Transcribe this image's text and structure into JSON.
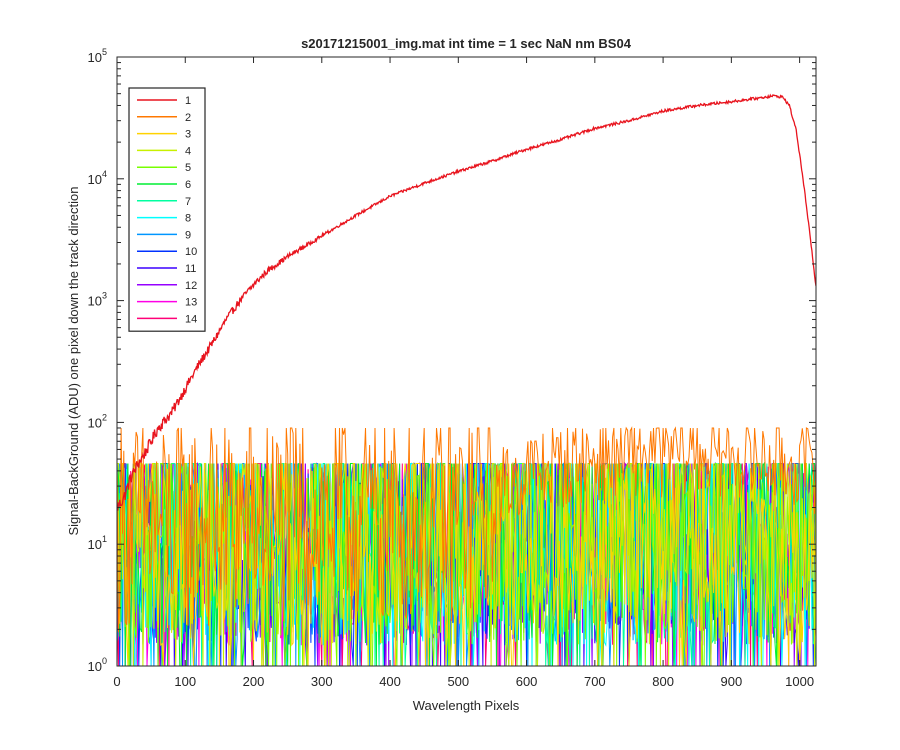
{
  "chart_data": {
    "type": "line",
    "title": "s20171215001_img.mat int time = 1 sec  NaN nm BS04",
    "xlabel": "Wavelength Pixels",
    "ylabel": "Signal-BackGround (ADU) one pixel down the track direction",
    "xlim": [
      0,
      1024
    ],
    "ylim": [
      1,
      100000
    ],
    "yscale": "log",
    "grid": false,
    "legend_position": "top-left",
    "x_ticks": [
      "0",
      "100",
      "200",
      "300",
      "400",
      "500",
      "600",
      "700",
      "800",
      "900",
      "1000"
    ],
    "y_ticks": [
      {
        "base": "10",
        "exp": "0"
      },
      {
        "base": "10",
        "exp": "1"
      },
      {
        "base": "10",
        "exp": "2"
      },
      {
        "base": "10",
        "exp": "3"
      },
      {
        "base": "10",
        "exp": "4"
      },
      {
        "base": "10",
        "exp": "5"
      }
    ],
    "series": [
      {
        "name": "1",
        "color": "#e8141e",
        "points": [
          [
            0,
            20
          ],
          [
            10,
            24
          ],
          [
            20,
            35
          ],
          [
            30,
            45
          ],
          [
            40,
            55
          ],
          [
            50,
            70
          ],
          [
            60,
            90
          ],
          [
            80,
            120
          ],
          [
            100,
            190
          ],
          [
            120,
            300
          ],
          [
            140,
            450
          ],
          [
            160,
            700
          ],
          [
            180,
            1000
          ],
          [
            200,
            1350
          ],
          [
            220,
            1750
          ],
          [
            250,
            2300
          ],
          [
            280,
            2900
          ],
          [
            300,
            3400
          ],
          [
            350,
            5000
          ],
          [
            400,
            7200
          ],
          [
            450,
            9200
          ],
          [
            500,
            11500
          ],
          [
            550,
            14000
          ],
          [
            600,
            17500
          ],
          [
            650,
            21000
          ],
          [
            700,
            26000
          ],
          [
            750,
            30000
          ],
          [
            800,
            36000
          ],
          [
            850,
            40000
          ],
          [
            900,
            43000
          ],
          [
            940,
            46000
          ],
          [
            960,
            48000
          ],
          [
            975,
            47000
          ],
          [
            985,
            40000
          ],
          [
            995,
            25000
          ],
          [
            1005,
            10000
          ],
          [
            1015,
            3500
          ],
          [
            1024,
            1300
          ]
        ]
      },
      {
        "name": "2",
        "color": "#ff7800",
        "points": [
          [
            0,
            15
          ],
          [
            100,
            15
          ],
          [
            200,
            16
          ],
          [
            300,
            17
          ],
          [
            400,
            17
          ],
          [
            500,
            18
          ],
          [
            550,
            25
          ],
          [
            600,
            40
          ],
          [
            650,
            45
          ],
          [
            700,
            50
          ],
          [
            750,
            55
          ],
          [
            800,
            55
          ],
          [
            850,
            58
          ],
          [
            900,
            55
          ],
          [
            950,
            50
          ],
          [
            1000,
            45
          ],
          [
            1024,
            40
          ]
        ]
      },
      {
        "name": "3",
        "color": "#ffd200",
        "points": [
          [
            0,
            12
          ],
          [
            1024,
            12
          ]
        ]
      },
      {
        "name": "4",
        "color": "#c8f000",
        "points": [
          [
            0,
            12
          ],
          [
            1024,
            12
          ]
        ]
      },
      {
        "name": "5",
        "color": "#78ff00",
        "points": [
          [
            0,
            12
          ],
          [
            1024,
            12
          ]
        ]
      },
      {
        "name": "6",
        "color": "#00ee33",
        "points": [
          [
            0,
            12
          ],
          [
            1024,
            12
          ]
        ]
      },
      {
        "name": "7",
        "color": "#00ffa0",
        "points": [
          [
            0,
            12
          ],
          [
            1024,
            12
          ]
        ]
      },
      {
        "name": "8",
        "color": "#00ffff",
        "points": [
          [
            0,
            12
          ],
          [
            1024,
            12
          ]
        ]
      },
      {
        "name": "9",
        "color": "#0096ff",
        "points": [
          [
            0,
            12
          ],
          [
            1024,
            12
          ]
        ]
      },
      {
        "name": "10",
        "color": "#0032ff",
        "points": [
          [
            0,
            12
          ],
          [
            1024,
            12
          ]
        ]
      },
      {
        "name": "11",
        "color": "#3c00ff",
        "points": [
          [
            0,
            12
          ],
          [
            1024,
            12
          ]
        ]
      },
      {
        "name": "12",
        "color": "#9600ff",
        "points": [
          [
            0,
            12
          ],
          [
            1024,
            12
          ]
        ]
      },
      {
        "name": "13",
        "color": "#ff00e6",
        "points": [
          [
            0,
            12
          ],
          [
            1024,
            12
          ]
        ]
      },
      {
        "name": "14",
        "color": "#ff0078",
        "points": [
          [
            0,
            12
          ],
          [
            1024,
            12
          ]
        ]
      }
    ]
  }
}
